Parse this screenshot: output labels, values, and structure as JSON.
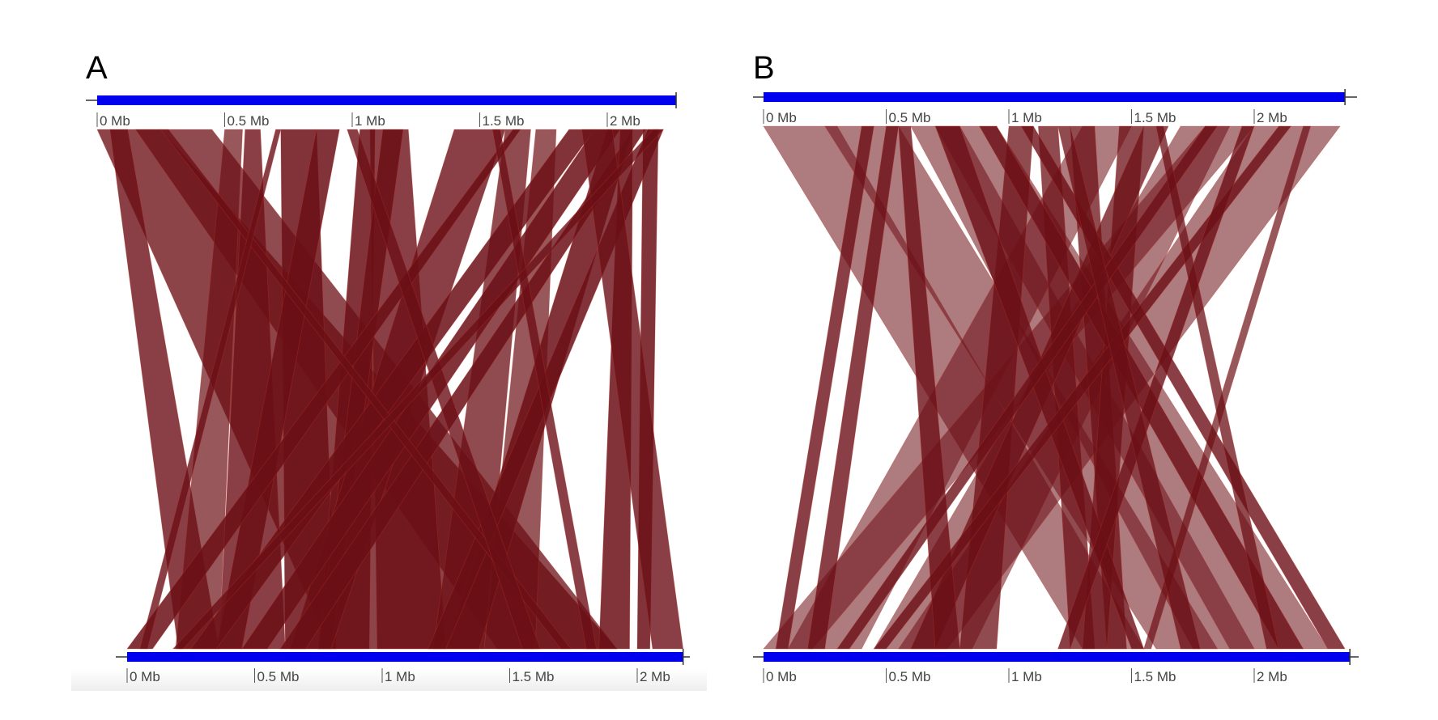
{
  "panels": [
    {
      "letter": "A",
      "top_ticks": [
        "0 Mb",
        "0.5 Mb",
        "1 Mb",
        "1.5 Mb",
        "2 Mb"
      ],
      "bottom_ticks": [
        "0 Mb",
        "0.5 Mb",
        "1 Mb",
        "1.5 Mb",
        "2 Mb"
      ],
      "top_length_mb": 2.27,
      "bottom_length_mb": 2.18,
      "links": [
        {
          "t": [
            0.0,
            0.25
          ],
          "b": [
            0.8,
            1.92
          ],
          "o": 0.78
        },
        {
          "t": [
            0.15,
            0.45
          ],
          "b": [
            1.45,
            1.92
          ],
          "o": 0.75
        },
        {
          "t": [
            0.05,
            0.12
          ],
          "b": [
            0.2,
            0.36
          ],
          "o": 0.8
        },
        {
          "t": [
            0.5,
            0.57
          ],
          "b": [
            0.19,
            0.36
          ],
          "o": 0.7
        },
        {
          "t": [
            0.58,
            0.64
          ],
          "b": [
            0.36,
            0.62
          ],
          "o": 0.8
        },
        {
          "t": [
            0.72,
            0.86
          ],
          "b": [
            0.62,
            0.82
          ],
          "o": 0.85
        },
        {
          "t": [
            0.86,
            0.95
          ],
          "b": [
            0.35,
            0.45
          ],
          "o": 0.85
        },
        {
          "t": [
            1.07,
            1.22
          ],
          "b": [
            0.98,
            1.25
          ],
          "o": 0.8
        },
        {
          "t": [
            1.03,
            1.09
          ],
          "b": [
            0.75,
            0.95
          ],
          "o": 0.85
        },
        {
          "t": [
            1.12,
            1.2
          ],
          "b": [
            0.75,
            0.8
          ],
          "o": 0.85
        },
        {
          "t": [
            1.4,
            1.6
          ],
          "b": [
            0.64,
            0.8
          ],
          "o": 0.8
        },
        {
          "t": [
            1.6,
            1.7
          ],
          "b": [
            1.2,
            1.4
          ],
          "o": 0.75
        },
        {
          "t": [
            1.72,
            1.8
          ],
          "b": [
            1.4,
            1.6
          ],
          "o": 0.7
        },
        {
          "t": [
            1.85,
            1.95
          ],
          "b": [
            0.25,
            0.35
          ],
          "o": 0.85
        },
        {
          "t": [
            1.95,
            2.05
          ],
          "b": [
            0.45,
            0.55
          ],
          "o": 0.85
        },
        {
          "t": [
            2.0,
            2.1
          ],
          "b": [
            1.25,
            1.38
          ],
          "o": 0.85
        },
        {
          "t": [
            2.1,
            2.15
          ],
          "b": [
            0.6,
            0.7
          ],
          "o": 0.85
        },
        {
          "t": [
            2.16,
            2.22
          ],
          "b": [
            1.18,
            1.25
          ],
          "o": 0.85
        },
        {
          "t": [
            2.05,
            2.1
          ],
          "b": [
            1.85,
            1.97
          ],
          "o": 0.85
        },
        {
          "t": [
            2.14,
            2.2
          ],
          "b": [
            2.0,
            2.05
          ],
          "o": 0.85
        },
        {
          "t": [
            1.9,
            2.02
          ],
          "b": [
            2.06,
            2.18
          ],
          "o": 0.8
        },
        {
          "t": [
            1.63,
            1.66
          ],
          "b": [
            0.0,
            0.1
          ],
          "o": 0.85
        },
        {
          "t": [
            0.25,
            0.28
          ],
          "b": [
            1.7,
            1.74
          ],
          "o": 0.8
        },
        {
          "t": [
            0.98,
            1.02
          ],
          "b": [
            1.55,
            1.62
          ],
          "o": 0.8
        },
        {
          "t": [
            1.55,
            1.58
          ],
          "b": [
            1.8,
            1.84
          ],
          "o": 0.8
        },
        {
          "t": [
            0.7,
            0.72
          ],
          "b": [
            0.05,
            0.08
          ],
          "o": 0.8
        },
        {
          "t": [
            2.18,
            2.22
          ],
          "b": [
            0.18,
            0.22
          ],
          "o": 0.8
        }
      ]
    },
    {
      "letter": "B",
      "top_ticks": [
        "0 Mb",
        "0.5 Mb",
        "1 Mb",
        "1.5 Mb",
        "2 Mb"
      ],
      "bottom_ticks": [
        "0 Mb",
        "0.5 Mb",
        "1 Mb",
        "1.5 Mb",
        "2 Mb"
      ],
      "top_length_mb": 2.37,
      "bottom_length_mb": 2.39,
      "links": [
        {
          "t": [
            0.0,
            0.3
          ],
          "b": [
            1.3,
            1.55
          ],
          "o": 0.55
        },
        {
          "t": [
            0.25,
            0.55
          ],
          "b": [
            1.6,
            1.85
          ],
          "o": 0.55
        },
        {
          "t": [
            0.6,
            0.8
          ],
          "b": [
            1.75,
            2.0
          ],
          "o": 0.55
        },
        {
          "t": [
            0.7,
            0.95
          ],
          "b": [
            1.9,
            2.3
          ],
          "o": 0.55
        },
        {
          "t": [
            1.3,
            1.5
          ],
          "b": [
            0.1,
            0.4
          ],
          "o": 0.55
        },
        {
          "t": [
            1.7,
            1.9
          ],
          "b": [
            0.45,
            0.85
          ],
          "o": 0.55
        },
        {
          "t": [
            2.0,
            2.35
          ],
          "b": [
            0.55,
            0.75
          ],
          "o": 0.55
        },
        {
          "t": [
            1.8,
            2.0
          ],
          "b": [
            0.0,
            0.2
          ],
          "o": 0.55
        },
        {
          "t": [
            1.0,
            1.1
          ],
          "b": [
            0.8,
            0.95
          ],
          "o": 0.75
        },
        {
          "t": [
            1.12,
            1.2
          ],
          "b": [
            1.25,
            1.35
          ],
          "o": 0.75
        },
        {
          "t": [
            1.25,
            1.35
          ],
          "b": [
            1.4,
            1.48
          ],
          "o": 0.75
        },
        {
          "t": [
            1.45,
            1.55
          ],
          "b": [
            1.3,
            1.4
          ],
          "o": 0.75
        },
        {
          "t": [
            1.55,
            1.65
          ],
          "b": [
            0.6,
            0.7
          ],
          "o": 0.75
        },
        {
          "t": [
            0.4,
            0.45
          ],
          "b": [
            0.05,
            0.1
          ],
          "o": 0.8
        },
        {
          "t": [
            0.5,
            0.55
          ],
          "b": [
            0.18,
            0.25
          ],
          "o": 0.8
        },
        {
          "t": [
            0.55,
            0.6
          ],
          "b": [
            0.7,
            0.8
          ],
          "o": 0.8
        },
        {
          "t": [
            0.7,
            0.8
          ],
          "b": [
            1.5,
            1.55
          ],
          "o": 0.8
        },
        {
          "t": [
            1.05,
            1.1
          ],
          "b": [
            2.3,
            2.37
          ],
          "o": 0.8
        },
        {
          "t": [
            0.88,
            0.95
          ],
          "b": [
            2.1,
            2.2
          ],
          "o": 0.8
        },
        {
          "t": [
            2.1,
            2.15
          ],
          "b": [
            0.45,
            0.5
          ],
          "o": 0.8
        },
        {
          "t": [
            1.8,
            1.85
          ],
          "b": [
            0.3,
            0.35
          ],
          "o": 0.8
        },
        {
          "t": [
            1.95,
            2.0
          ],
          "b": [
            1.2,
            1.25
          ],
          "o": 0.8
        },
        {
          "t": [
            2.2,
            2.23
          ],
          "b": [
            1.55,
            1.58
          ],
          "o": 0.7
        },
        {
          "t": [
            1.6,
            1.63
          ],
          "b": [
            2.05,
            2.1
          ],
          "o": 0.75
        },
        {
          "t": [
            1.2,
            1.25
          ],
          "b": [
            1.7,
            1.78
          ],
          "o": 0.75
        }
      ]
    }
  ],
  "colors": {
    "axis_bar": "#0000ee",
    "link_fill": "#6b0f16",
    "link_edge": "#c0392b",
    "tick_text": "#444444"
  }
}
